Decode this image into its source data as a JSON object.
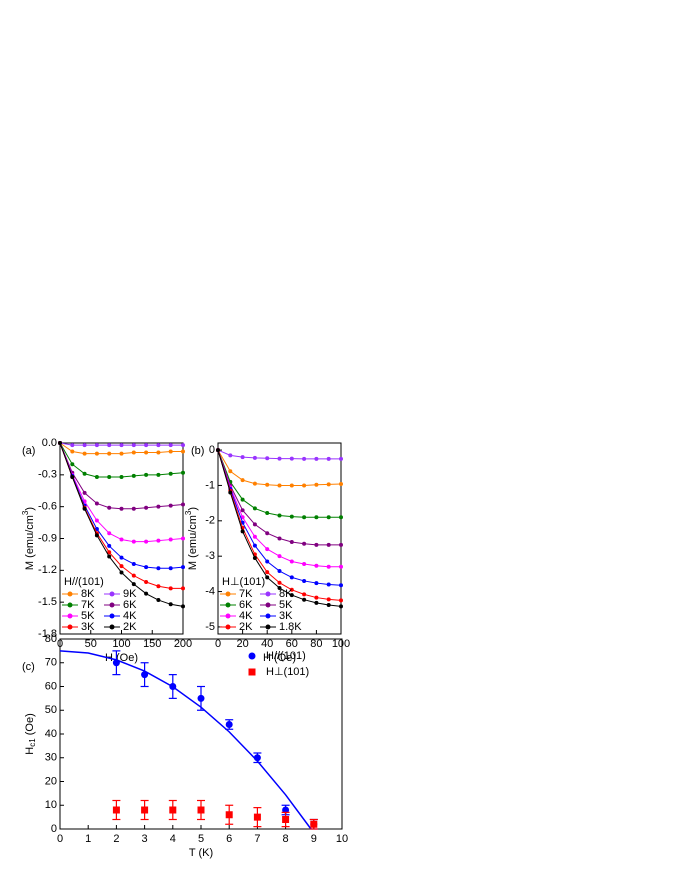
{
  "chart_data": [
    {
      "type": "line",
      "panel_label": "(a)",
      "x_label": "H (Oe)",
      "y_label": [
        "M (emu/cm",
        "3",
        ")"
      ],
      "y_label_script": "super",
      "xlim": [
        0,
        200
      ],
      "xticks": [
        0,
        50,
        100,
        150,
        200
      ],
      "ylim": [
        -1.8,
        0
      ],
      "yticks": [
        {
          "value": 0,
          "label": "0.0"
        },
        -0.3,
        -0.6,
        -0.9,
        -1.2,
        -1.5,
        -1.8
      ],
      "legend_title": "H//(101)",
      "legend": "lower left",
      "x": [
        0,
        20,
        40,
        60,
        80,
        100,
        120,
        140,
        160,
        180,
        200
      ],
      "series": [
        {
          "name": "8K",
          "color": "#ff8000",
          "values": [
            0,
            -0.08,
            -0.1,
            -0.1,
            -0.1,
            -0.1,
            -0.09,
            -0.09,
            -0.09,
            -0.08,
            -0.08
          ]
        },
        {
          "name": "9K",
          "color": "#9933ff",
          "values": [
            0,
            -0.02,
            -0.02,
            -0.02,
            -0.02,
            -0.02,
            -0.02,
            -0.02,
            -0.02,
            -0.02,
            -0.02
          ]
        },
        {
          "name": "7K",
          "color": "#008000",
          "values": [
            0,
            -0.2,
            -0.29,
            -0.32,
            -0.32,
            -0.32,
            -0.31,
            -0.3,
            -0.3,
            -0.29,
            -0.28
          ]
        },
        {
          "name": "6K",
          "color": "#800080",
          "values": [
            0,
            -0.28,
            -0.47,
            -0.57,
            -0.61,
            -0.62,
            -0.62,
            -0.61,
            -0.6,
            -0.59,
            -0.58
          ]
        },
        {
          "name": "5K",
          "color": "#ff00ff",
          "values": [
            0,
            -0.3,
            -0.55,
            -0.73,
            -0.85,
            -0.91,
            -0.93,
            -0.93,
            -0.92,
            -0.91,
            -0.9
          ]
        },
        {
          "name": "4K",
          "color": "#0000ff",
          "values": [
            0,
            -0.31,
            -0.59,
            -0.81,
            -0.97,
            -1.08,
            -1.14,
            -1.17,
            -1.18,
            -1.18,
            -1.17
          ]
        },
        {
          "name": "3K",
          "color": "#ff0000",
          "values": [
            0,
            -0.32,
            -0.61,
            -0.85,
            -1.03,
            -1.16,
            -1.25,
            -1.31,
            -1.35,
            -1.37,
            -1.37
          ]
        },
        {
          "name": "2K",
          "color": "#000000",
          "values": [
            0,
            -0.32,
            -0.62,
            -0.87,
            -1.07,
            -1.22,
            -1.33,
            -1.42,
            -1.48,
            -1.52,
            -1.54
          ]
        }
      ]
    },
    {
      "type": "line",
      "panel_label": "(b)",
      "x_label": "H (Oe)",
      "y_label": [
        "M (emu/cm",
        "3",
        ")"
      ],
      "y_label_script": "super",
      "xlim": [
        0,
        100
      ],
      "xticks": [
        0,
        20,
        40,
        60,
        80,
        100
      ],
      "ylim": [
        -5.2,
        0.2
      ],
      "yticks": [
        0,
        -1,
        -2,
        -3,
        -4,
        -5
      ],
      "legend_title": "H⊥(101)",
      "legend": "lower left",
      "x": [
        0,
        10,
        20,
        30,
        40,
        50,
        60,
        70,
        80,
        90,
        100
      ],
      "series": [
        {
          "name": "7K",
          "color": "#ff8000",
          "values": [
            0,
            -0.6,
            -0.85,
            -0.95,
            -0.98,
            -1.0,
            -1.0,
            -1.0,
            -0.98,
            -0.97,
            -0.96
          ]
        },
        {
          "name": "8K",
          "color": "#9933ff",
          "values": [
            0,
            -0.15,
            -0.2,
            -0.22,
            -0.23,
            -0.24,
            -0.24,
            -0.25,
            -0.25,
            -0.25,
            -0.25
          ]
        },
        {
          "name": "6K",
          "color": "#008000",
          "values": [
            0,
            -0.9,
            -1.4,
            -1.65,
            -1.78,
            -1.85,
            -1.88,
            -1.9,
            -1.9,
            -1.9,
            -1.9
          ]
        },
        {
          "name": "5K",
          "color": "#800080",
          "values": [
            0,
            -1.0,
            -1.7,
            -2.1,
            -2.35,
            -2.5,
            -2.6,
            -2.65,
            -2.68,
            -2.68,
            -2.68
          ]
        },
        {
          "name": "4K",
          "color": "#ff00ff",
          "values": [
            0,
            -1.05,
            -1.9,
            -2.45,
            -2.8,
            -3.0,
            -3.15,
            -3.22,
            -3.27,
            -3.3,
            -3.3
          ]
        },
        {
          "name": "3K",
          "color": "#0000ff",
          "values": [
            0,
            -1.1,
            -2.05,
            -2.7,
            -3.15,
            -3.42,
            -3.6,
            -3.7,
            -3.76,
            -3.8,
            -3.82
          ]
        },
        {
          "name": "2K",
          "color": "#ff0000",
          "values": [
            0,
            -1.15,
            -2.2,
            -2.95,
            -3.45,
            -3.75,
            -3.95,
            -4.08,
            -4.17,
            -4.22,
            -4.25
          ]
        },
        {
          "name": "1.8K",
          "color": "#000000",
          "values": [
            0,
            -1.2,
            -2.3,
            -3.05,
            -3.6,
            -3.9,
            -4.1,
            -4.23,
            -4.32,
            -4.38,
            -4.42
          ]
        }
      ]
    },
    {
      "type": "scatter",
      "panel_label": "(c)",
      "x_label": "T (K)",
      "y_label": [
        "H",
        "c1",
        " (Oe)"
      ],
      "y_label_script": "sub",
      "xlim": [
        0,
        10
      ],
      "xticks": [
        0,
        1,
        2,
        3,
        4,
        5,
        6,
        7,
        8,
        9,
        10
      ],
      "ylim": [
        0,
        80
      ],
      "yticks": [
        0,
        10,
        20,
        30,
        40,
        50,
        60,
        70,
        80
      ],
      "legend": "upper right",
      "x": [
        2,
        3,
        4,
        5,
        6,
        7,
        8,
        9
      ],
      "series": [
        {
          "name": "H//(101)",
          "color": "#0000ff",
          "marker": "circle",
          "values": [
            70,
            65,
            60,
            55,
            44,
            30,
            8,
            2
          ],
          "errors": [
            5,
            5,
            5,
            5,
            2,
            2,
            2,
            2
          ]
        },
        {
          "name": "H⊥(101)",
          "color": "#ff0000",
          "marker": "square",
          "values": [
            8,
            8,
            8,
            8,
            6,
            5,
            4,
            2
          ],
          "errors": [
            4,
            4,
            4,
            4,
            4,
            4,
            3,
            2
          ]
        }
      ],
      "fit": {
        "color": "#0000ff",
        "x": [
          0,
          1,
          2,
          3,
          4,
          5,
          6,
          7,
          8,
          8.9
        ],
        "values": [
          75,
          74.1,
          71.2,
          66.5,
          59.9,
          51.3,
          40.9,
          28.6,
          14.4,
          0
        ]
      }
    }
  ]
}
